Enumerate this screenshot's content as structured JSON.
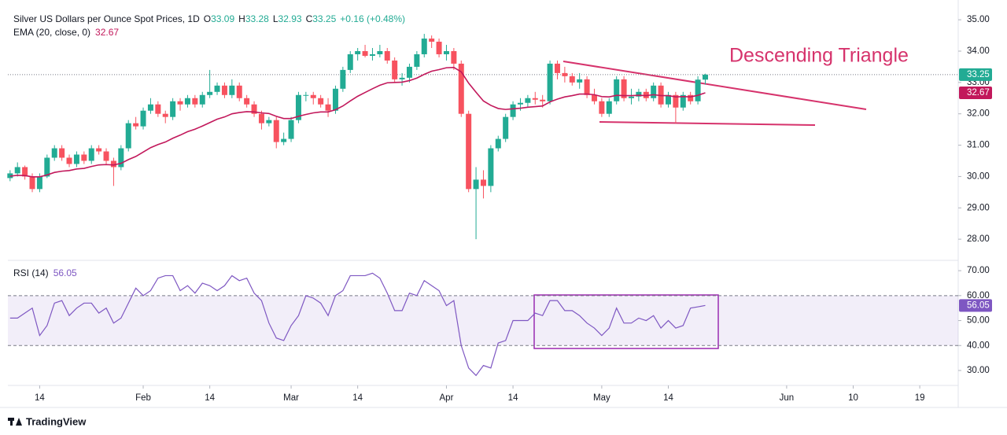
{
  "chart_data": [
    {
      "type": "candlestick",
      "title": "Silver US Dollars per Ounce Spot Prices, 1D",
      "ohlc_labels": [
        "O",
        "H",
        "L",
        "C"
      ],
      "change": "+0.16 (+0.48%)",
      "up_color": "#22ab94",
      "down_color": "#f7525f",
      "open": [
        29.95,
        30.1,
        30.3,
        30.0,
        29.6,
        30.0,
        30.6,
        30.9,
        30.6,
        30.4,
        30.7,
        30.5,
        30.9,
        30.8,
        30.5,
        30.3,
        30.9,
        31.7,
        31.6,
        32.1,
        32.3,
        32.0,
        31.9,
        32.4,
        32.3,
        32.5,
        32.3,
        32.6,
        32.7,
        32.9,
        32.6,
        32.9,
        32.5,
        32.3,
        32.0,
        31.7,
        31.8,
        31.1,
        31.2,
        31.8,
        32.6,
        32.6,
        32.5,
        32.3,
        32.1,
        32.8,
        33.4,
        33.9,
        34.0,
        33.85,
        33.9,
        34.0,
        33.7,
        33.1,
        33.15,
        33.5,
        33.9,
        34.4,
        34.3,
        33.9,
        34.0,
        33.6,
        32.0,
        29.6,
        29.9,
        29.7,
        30.9,
        31.2,
        31.9,
        32.3,
        32.35,
        32.5,
        32.45,
        32.4,
        33.6,
        33.3,
        33.2,
        33.0,
        33.1,
        32.6,
        32.4,
        32.0,
        32.4,
        33.1,
        32.5,
        32.55,
        32.7,
        32.5,
        32.9,
        32.3,
        32.6,
        32.2,
        32.6,
        32.4,
        33.09
      ],
      "high": [
        30.2,
        30.45,
        30.35,
        30.1,
        30.1,
        30.7,
        31.0,
        31.0,
        30.7,
        30.8,
        30.8,
        31.0,
        31.0,
        30.9,
        30.6,
        31.0,
        31.8,
        31.9,
        32.2,
        32.5,
        32.4,
        32.1,
        32.5,
        32.5,
        32.6,
        32.6,
        32.7,
        33.4,
        33.0,
        33.0,
        33.1,
        33.0,
        32.6,
        32.4,
        32.1,
        31.9,
        31.9,
        31.4,
        31.9,
        32.7,
        32.7,
        32.7,
        32.6,
        32.5,
        32.9,
        33.5,
        34.0,
        34.1,
        34.2,
        34.1,
        34.2,
        34.1,
        33.8,
        33.3,
        33.6,
        34.0,
        34.55,
        34.5,
        34.4,
        34.2,
        34.1,
        33.7,
        32.1,
        30.3,
        30.2,
        31.0,
        31.3,
        32.0,
        32.4,
        32.5,
        32.6,
        32.7,
        32.6,
        33.7,
        33.7,
        33.5,
        33.3,
        33.3,
        33.2,
        32.8,
        32.5,
        32.5,
        33.2,
        33.2,
        32.8,
        32.8,
        32.8,
        33.0,
        33.0,
        32.7,
        32.7,
        32.7,
        32.7,
        33.2,
        33.28
      ],
      "low": [
        29.85,
        30.0,
        29.9,
        29.5,
        29.5,
        29.95,
        30.5,
        30.5,
        30.3,
        30.3,
        30.4,
        30.4,
        30.7,
        30.4,
        29.7,
        30.2,
        30.8,
        31.5,
        31.5,
        32.0,
        31.9,
        31.7,
        31.8,
        32.1,
        32.2,
        32.2,
        32.2,
        32.5,
        32.6,
        32.5,
        32.5,
        32.4,
        32.2,
        31.9,
        31.5,
        31.6,
        30.9,
        31.0,
        31.1,
        31.7,
        32.4,
        32.3,
        32.2,
        31.9,
        32.0,
        32.7,
        33.3,
        33.7,
        33.8,
        33.7,
        33.8,
        33.6,
        33.0,
        32.9,
        33.0,
        33.4,
        33.8,
        34.1,
        33.8,
        33.7,
        33.4,
        31.9,
        29.5,
        28.0,
        29.3,
        29.5,
        30.8,
        31.1,
        31.8,
        32.1,
        32.2,
        32.3,
        32.2,
        32.3,
        33.1,
        33.0,
        32.9,
        32.8,
        32.5,
        32.3,
        31.9,
        31.9,
        32.3,
        32.4,
        32.3,
        32.4,
        32.4,
        32.4,
        32.2,
        32.2,
        31.7,
        32.1,
        32.3,
        32.3,
        32.93
      ],
      "close": [
        30.1,
        30.3,
        30.0,
        29.6,
        30.0,
        30.6,
        30.9,
        30.6,
        30.4,
        30.7,
        30.5,
        30.9,
        30.8,
        30.5,
        30.3,
        30.9,
        31.7,
        31.6,
        32.1,
        32.3,
        32.0,
        31.9,
        32.4,
        32.3,
        32.5,
        32.3,
        32.6,
        32.7,
        32.9,
        32.6,
        32.9,
        32.5,
        32.3,
        32.0,
        31.7,
        31.8,
        31.1,
        31.2,
        31.8,
        32.6,
        32.6,
        32.5,
        32.3,
        32.1,
        32.8,
        33.4,
        33.9,
        34.0,
        33.85,
        33.9,
        34.0,
        33.7,
        33.1,
        33.15,
        33.5,
        33.9,
        34.4,
        34.3,
        33.9,
        34.0,
        33.6,
        32.0,
        29.6,
        29.9,
        29.7,
        30.9,
        31.2,
        31.9,
        32.3,
        32.35,
        32.5,
        32.45,
        32.4,
        33.6,
        33.3,
        33.2,
        33.0,
        33.1,
        32.6,
        32.4,
        32.0,
        32.4,
        33.1,
        32.5,
        32.55,
        32.7,
        32.5,
        32.9,
        32.3,
        32.6,
        32.2,
        32.6,
        32.4,
        33.09,
        33.25
      ],
      "series": [
        {
          "name": "EMA (20, close, 0)",
          "color": "#c2185b",
          "values": [
            30.01,
            30.04,
            30.03,
            29.99,
            29.99,
            30.05,
            30.13,
            30.17,
            30.19,
            30.24,
            30.26,
            30.32,
            30.37,
            30.38,
            30.37,
            30.42,
            30.54,
            30.64,
            30.78,
            30.92,
            31.02,
            31.1,
            31.22,
            31.32,
            31.43,
            31.51,
            31.61,
            31.72,
            31.83,
            31.9,
            32.0,
            32.04,
            32.07,
            32.06,
            32.03,
            32.01,
            31.92,
            31.85,
            31.85,
            31.92,
            31.98,
            32.03,
            32.06,
            32.06,
            32.13,
            32.25,
            32.41,
            32.56,
            32.68,
            32.8,
            32.91,
            32.99,
            33.0,
            33.01,
            33.06,
            33.14,
            33.26,
            33.36,
            33.41,
            33.47,
            33.48,
            33.34,
            32.98,
            32.69,
            32.41,
            32.27,
            32.17,
            32.14,
            32.16,
            32.18,
            32.21,
            32.23,
            32.25,
            32.38,
            32.47,
            32.54,
            32.58,
            32.63,
            32.63,
            32.61,
            32.55,
            32.54,
            32.59,
            32.58,
            32.58,
            32.59,
            32.58,
            32.61,
            32.58,
            32.58,
            32.54,
            32.55,
            32.54,
            32.59,
            32.67
          ]
        }
      ],
      "xlim": [
        -0.3,
        128.2
      ],
      "xticks": [
        {
          "value": 4,
          "label": "14"
        },
        {
          "value": 18,
          "label": "Feb"
        },
        {
          "value": 27,
          "label": "14"
        },
        {
          "value": 38,
          "label": "Mar"
        },
        {
          "value": 47,
          "label": "14"
        },
        {
          "value": 59,
          "label": "Apr"
        },
        {
          "value": 68,
          "label": "14"
        },
        {
          "value": 80,
          "label": "May"
        },
        {
          "value": 89,
          "label": "14"
        },
        {
          "value": 105,
          "label": "Jun"
        },
        {
          "value": 114,
          "label": "10"
        },
        {
          "value": 123,
          "label": "19"
        }
      ],
      "ylim": [
        27.35,
        35.43
      ],
      "yticks": [
        {
          "value": 28,
          "label": "28.00"
        },
        {
          "value": 29,
          "label": "29.00"
        },
        {
          "value": 30,
          "label": "30.00"
        },
        {
          "value": 31,
          "label": "31.00"
        },
        {
          "value": 32,
          "label": "32.00"
        },
        {
          "value": 33,
          "label": "33.00"
        },
        {
          "value": 34,
          "label": "34.00"
        },
        {
          "value": 35,
          "label": "35.00"
        }
      ],
      "annotation": "Descending Triangle"
    },
    {
      "type": "line",
      "series": [
        {
          "name": "RSI (14)",
          "color": "#7e57c2",
          "values": [
            51,
            51,
            53,
            55,
            44,
            48,
            57,
            58,
            52,
            55,
            57,
            57,
            53,
            55,
            49,
            51,
            57,
            63,
            60,
            62,
            67,
            68,
            68,
            62,
            64,
            61,
            65,
            64,
            62,
            64,
            68,
            66,
            67,
            61,
            58,
            49,
            43,
            42,
            48,
            52,
            60,
            59,
            57,
            52,
            60,
            62,
            68,
            68,
            68,
            69,
            67,
            61,
            54,
            54,
            61,
            60,
            66,
            64,
            62,
            56,
            58,
            40,
            31,
            28,
            32,
            31,
            41,
            42,
            50,
            50,
            50,
            53,
            52,
            58,
            58,
            54,
            54,
            52,
            49,
            47,
            44,
            47,
            55,
            49,
            49,
            51,
            50,
            52,
            47,
            50,
            47,
            48,
            55,
            55.5,
            56.05
          ]
        }
      ],
      "ylim": [
        24,
        73.5
      ],
      "yticks": [
        {
          "value": 30,
          "label": "30.00"
        },
        {
          "value": 40,
          "label": "40.00"
        },
        {
          "value": 50,
          "label": "50.00"
        },
        {
          "value": 60,
          "label": "60.00"
        },
        {
          "value": 70,
          "label": "70.00"
        }
      ],
      "band": [
        40,
        60
      ]
    }
  ],
  "footer": "TradingView"
}
